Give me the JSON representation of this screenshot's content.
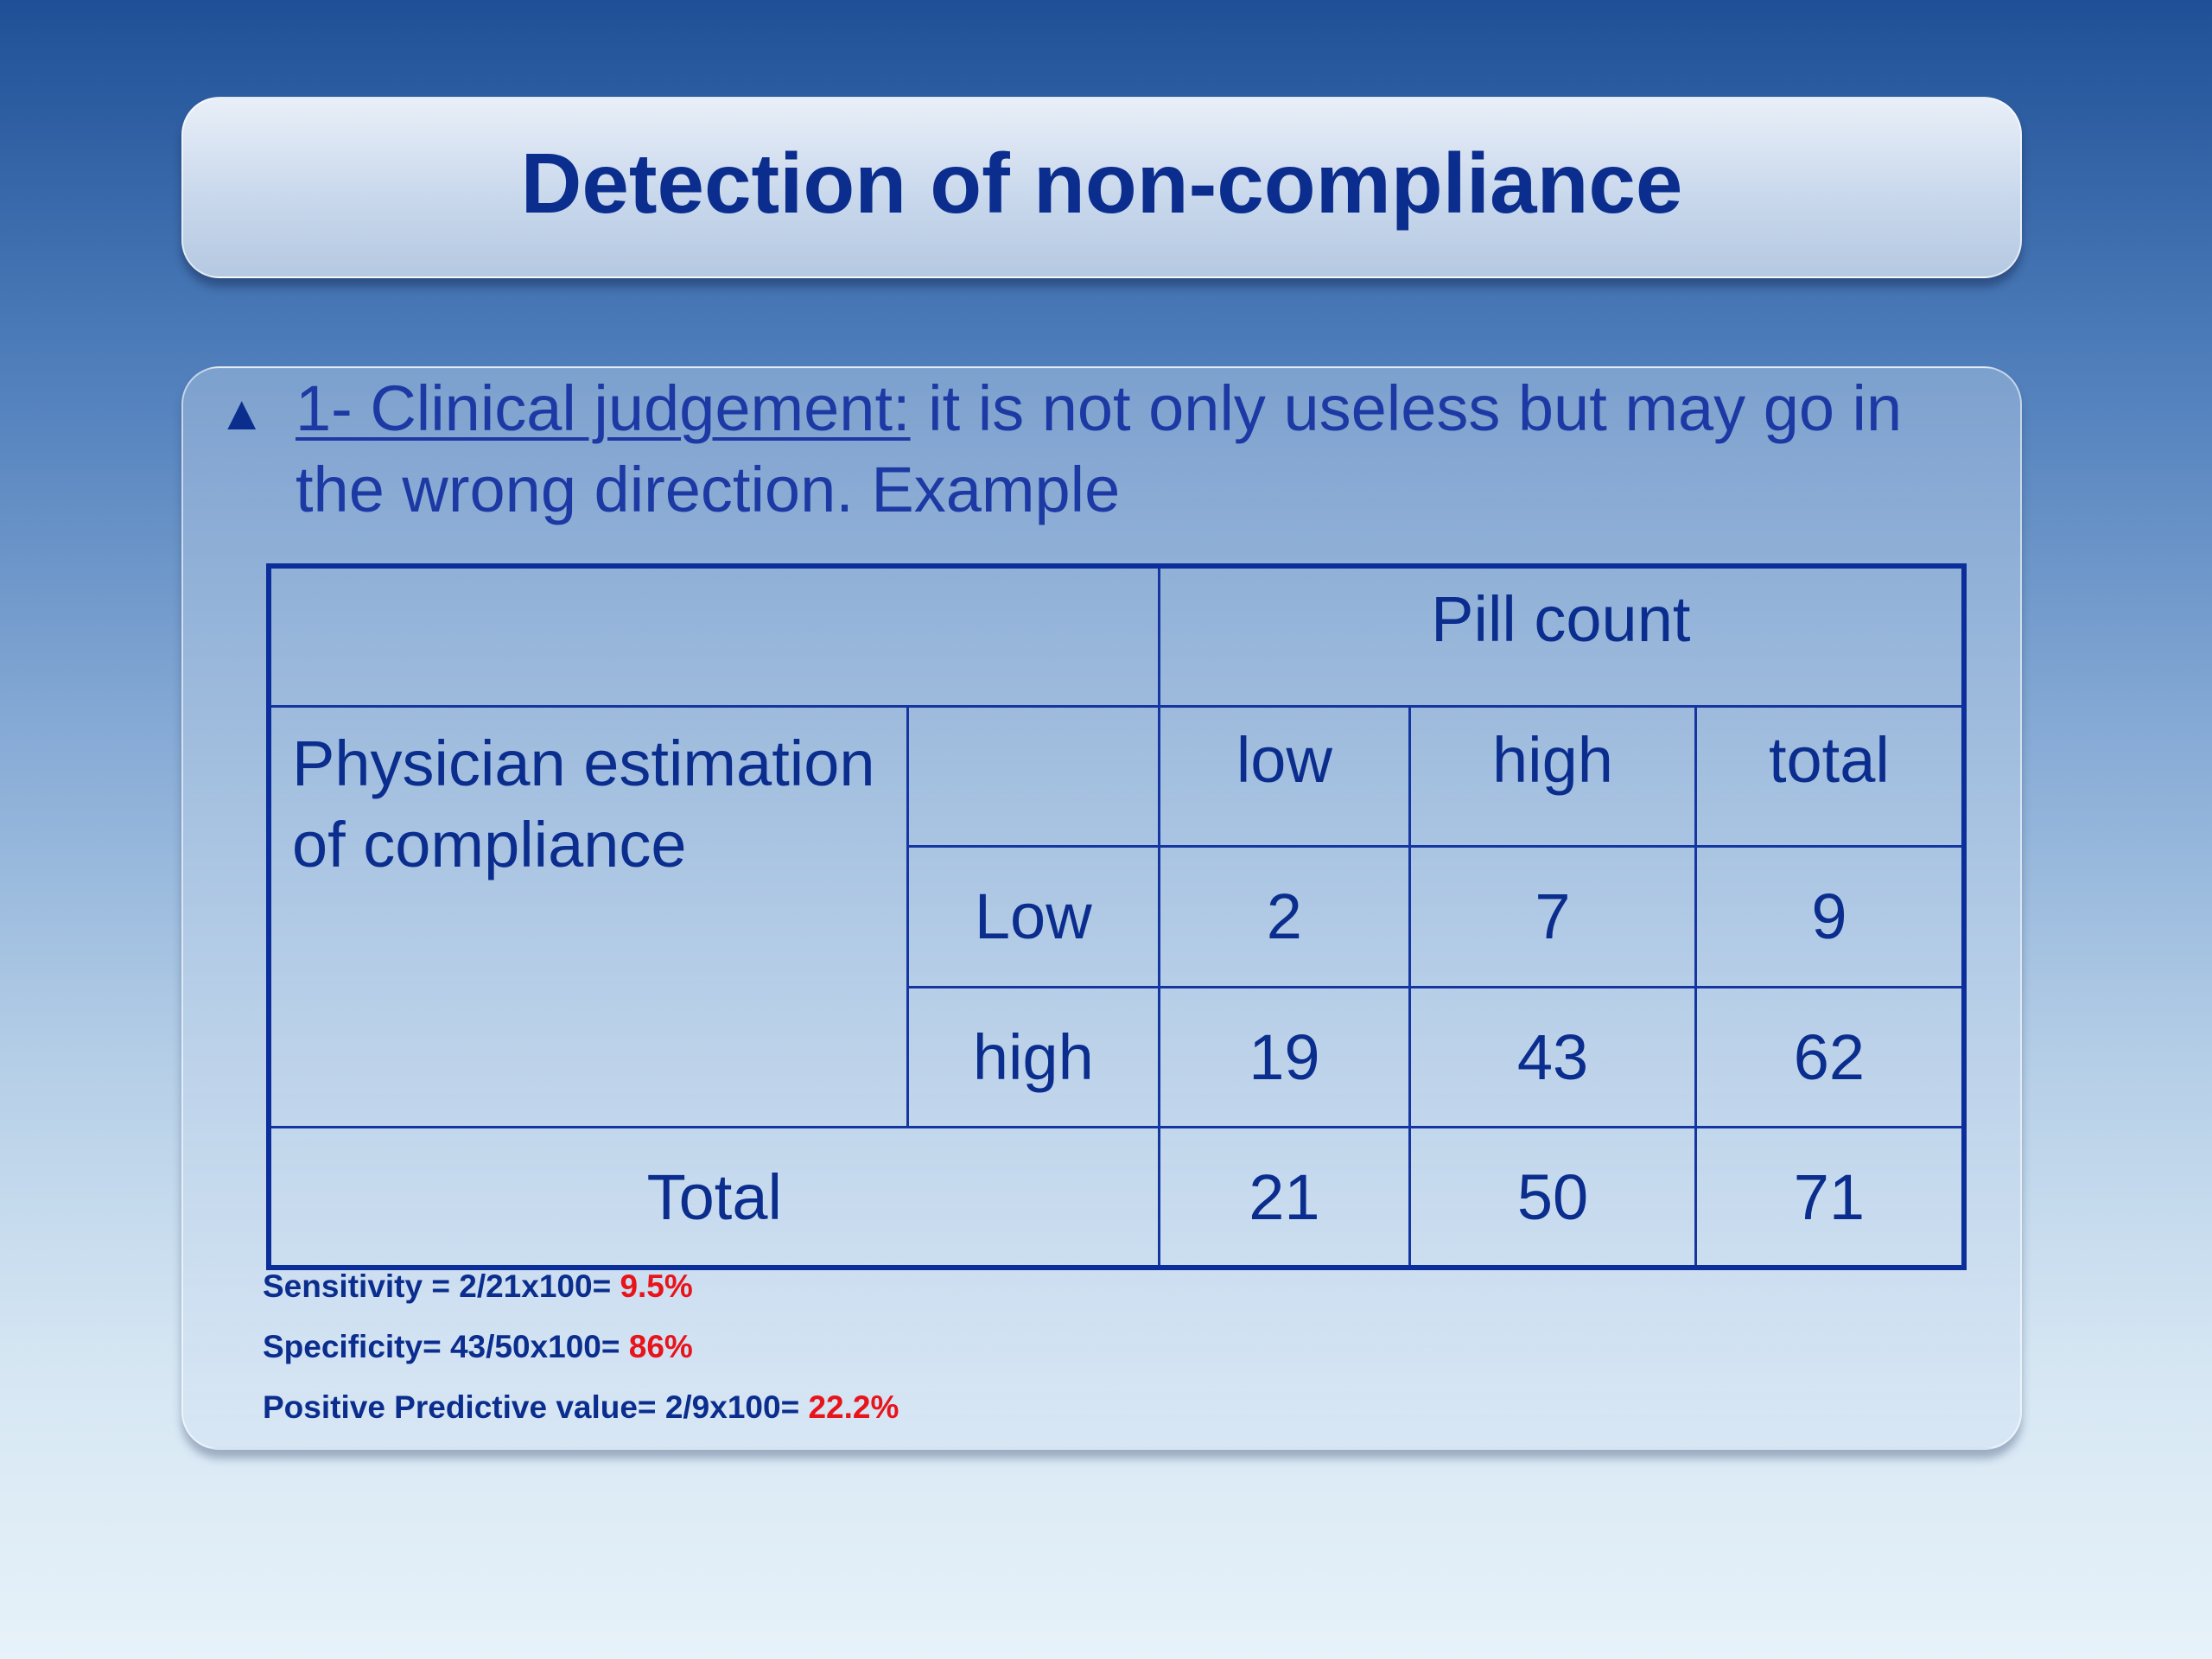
{
  "title": "Detection of non-compliance",
  "bullet": {
    "icon": "triangle-bullet-icon",
    "heading": "1- Clinical judgement:",
    "text": " it is not only useless but may go in the wrong direction.  Example"
  },
  "table": {
    "header": "Pill count",
    "row_group_label": "Physician estimation of compliance",
    "columns": [
      "low",
      "high",
      "total"
    ],
    "rows": [
      {
        "label": "Low",
        "values": [
          "2",
          "7",
          "9"
        ]
      },
      {
        "label": "high",
        "values": [
          "19",
          "43",
          "62"
        ]
      }
    ],
    "total_row": {
      "label": "Total",
      "values": [
        "21",
        "50",
        "71"
      ]
    }
  },
  "stats": [
    {
      "label": "Sensitivity = 2/21x100= ",
      "value": "9.5%"
    },
    {
      "label": "Specificity= 43/50x100= ",
      "value": "86%"
    },
    {
      "label": "Positive Predictive value= 2/9x100= ",
      "value": "22.2%"
    }
  ],
  "colors": {
    "text_blue": "#0b2e8e",
    "highlight_red": "#e8141c",
    "table_border": "#0b2e9a"
  }
}
